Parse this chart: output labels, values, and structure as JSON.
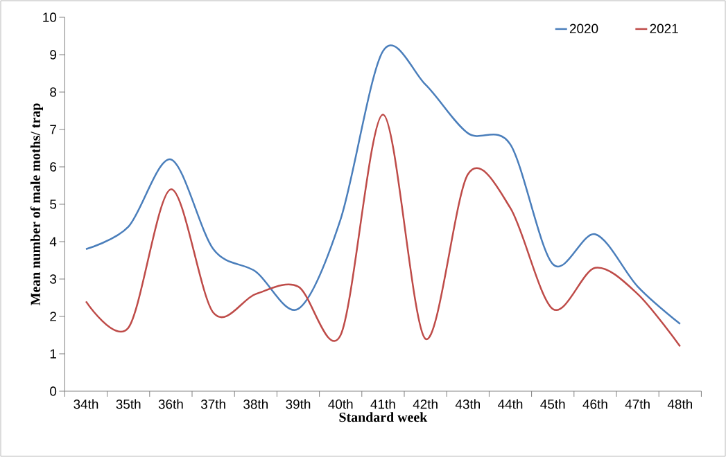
{
  "chart_data": {
    "type": "line",
    "xlabel": "Standard week",
    "ylabel": "Mean number of male moths/ trap",
    "categories": [
      "34th",
      "35th",
      "36th",
      "37th",
      "38th",
      "39th",
      "40th",
      "41th",
      "42th",
      "43th",
      "44th",
      "45th",
      "46th",
      "47th",
      "48th"
    ],
    "series": [
      {
        "name": "2020",
        "color": "#4a7ebb",
        "values": [
          3.8,
          4.4,
          6.2,
          3.8,
          3.2,
          2.2,
          4.6,
          9.1,
          8.2,
          6.9,
          6.6,
          3.4,
          4.2,
          2.8,
          1.8
        ]
      },
      {
        "name": "2021",
        "color": "#be4b48",
        "values": [
          2.4,
          1.7,
          5.4,
          2.1,
          2.6,
          2.8,
          1.5,
          7.4,
          1.4,
          5.8,
          4.9,
          2.2,
          3.3,
          2.6,
          1.2
        ]
      }
    ],
    "ylim": [
      0,
      10
    ],
    "yticks": [
      0,
      1,
      2,
      3,
      4,
      5,
      6,
      7,
      8,
      9,
      10
    ],
    "legend": "top right"
  }
}
